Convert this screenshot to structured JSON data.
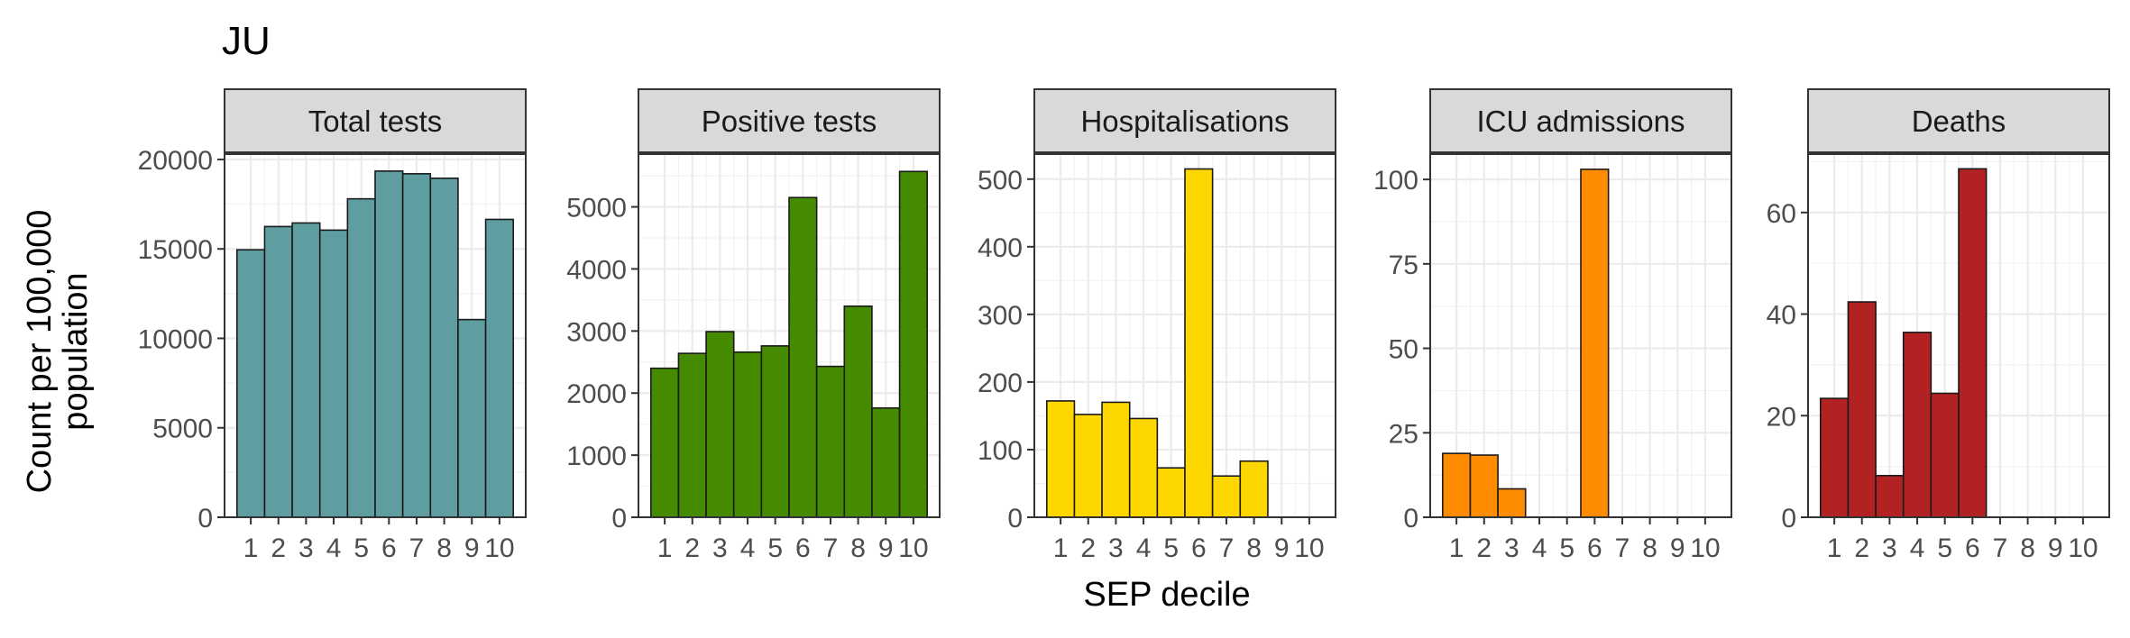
{
  "figure": {
    "title": "JU",
    "ylabel_line1": "Count per 100,000",
    "ylabel_line2": "population",
    "xlabel": "SEP decile"
  },
  "chart_data": [
    {
      "type": "bar",
      "title": "Total tests",
      "color": "#5F9EA0",
      "categories": [
        "1",
        "2",
        "3",
        "4",
        "5",
        "6",
        "7",
        "8",
        "9",
        "10"
      ],
      "values": [
        14950,
        16250,
        16450,
        16050,
        17800,
        19350,
        19200,
        18950,
        11050,
        16650
      ],
      "ylim": [
        0,
        20300
      ],
      "yticks": [
        0,
        5000,
        10000,
        15000,
        20000
      ],
      "grid": true
    },
    {
      "type": "bar",
      "title": "Positive tests",
      "color": "#458B00",
      "categories": [
        "1",
        "2",
        "3",
        "4",
        "5",
        "6",
        "7",
        "8",
        "9",
        "10"
      ],
      "values": [
        2400,
        2640,
        2990,
        2660,
        2760,
        5150,
        2430,
        3400,
        1760,
        5570
      ],
      "ylim": [
        0,
        5850
      ],
      "yticks": [
        0,
        1000,
        2000,
        3000,
        4000,
        5000
      ],
      "grid": true
    },
    {
      "type": "bar",
      "title": "Hospitalisations",
      "color": "#FFD700",
      "categories": [
        "1",
        "2",
        "3",
        "4",
        "5",
        "6",
        "7",
        "8",
        "9",
        "10"
      ],
      "values": [
        172,
        152,
        170,
        146,
        73,
        515,
        61,
        83,
        0,
        0
      ],
      "ylim": [
        0,
        537
      ],
      "yticks": [
        0,
        100,
        200,
        300,
        400,
        500
      ],
      "grid": true
    },
    {
      "type": "bar",
      "title": "ICU admissions",
      "color": "#FF8C00",
      "categories": [
        "1",
        "2",
        "3",
        "4",
        "5",
        "6",
        "7",
        "8",
        "9",
        "10"
      ],
      "values": [
        18.9,
        18.4,
        8.4,
        0,
        0,
        103,
        0,
        0,
        0,
        0
      ],
      "ylim": [
        0,
        107.5
      ],
      "yticks": [
        0,
        25,
        50,
        75,
        100
      ],
      "grid": true
    },
    {
      "type": "bar",
      "title": "Deaths",
      "color": "#B22222",
      "categories": [
        "1",
        "2",
        "3",
        "4",
        "5",
        "6",
        "7",
        "8",
        "9",
        "10"
      ],
      "values": [
        23.4,
        42.4,
        8.2,
        36.4,
        24.4,
        68.6,
        0,
        0,
        0,
        0
      ],
      "ylim": [
        0,
        71.5
      ],
      "yticks": [
        0,
        20,
        40,
        60
      ],
      "grid": true
    }
  ]
}
